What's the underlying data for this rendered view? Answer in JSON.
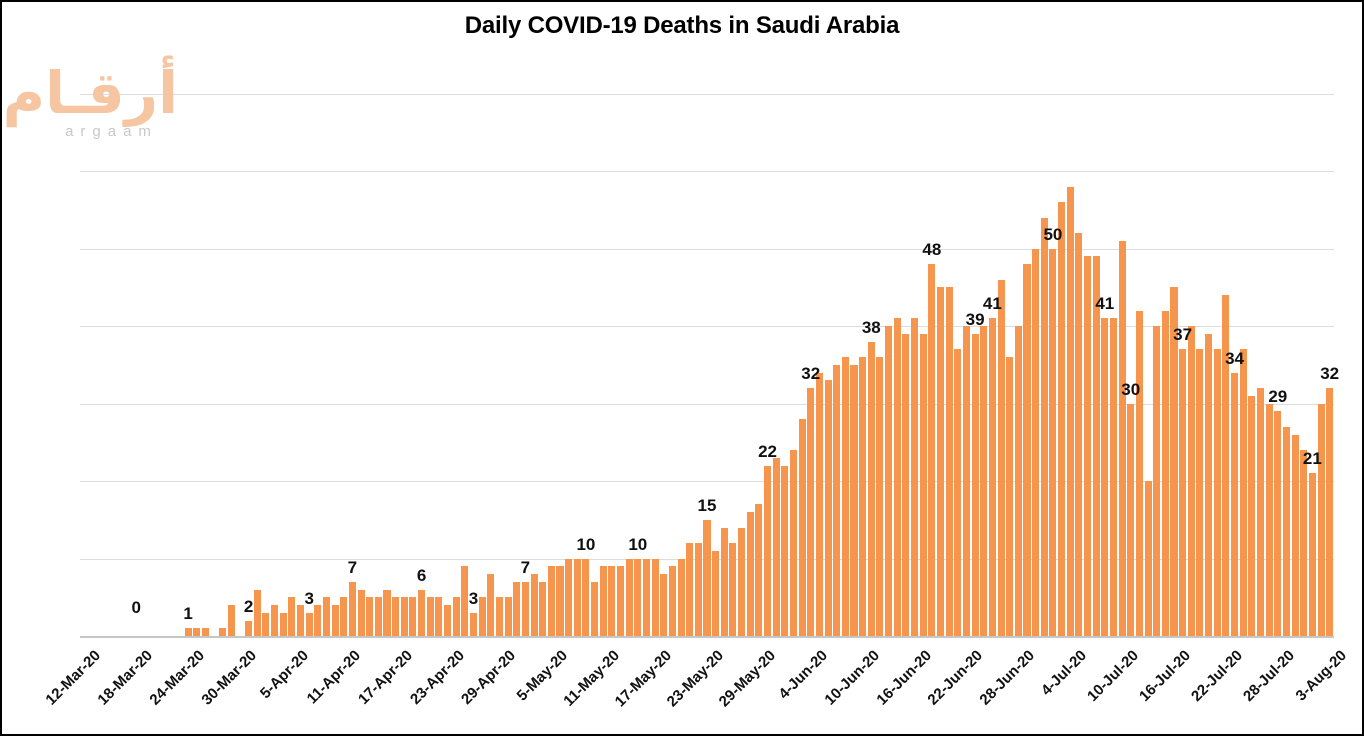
{
  "title": "Daily COVID-19 Deaths in Saudi Arabia",
  "logo": {
    "arabic": "أرقـام",
    "latin": "argaam"
  },
  "colors": {
    "bar": "#F6954D",
    "gridline": "#DCDCDC",
    "axis_line": "#C6C6C6",
    "title_text": "#000000",
    "label_text": "#111111",
    "logo_arabic": "#F6C5A1",
    "logo_latin": "#C8C8C8",
    "background": "#FFFFFF",
    "border": "#000000"
  },
  "chart_data": {
    "type": "bar",
    "title": "Daily COVID-19 Deaths in Saudi Arabia",
    "xlabel": "",
    "ylabel": "",
    "ylim": [
      0,
      70
    ],
    "gridline_step": 10,
    "grid": true,
    "legend": "none",
    "y_axis_labels_visible": false,
    "x_first_date": "12-Mar-20",
    "x_last_date": "3-Aug-20",
    "x_tick_every": 6,
    "x_tick_labels": [
      "12-Mar-20",
      "18-Mar-20",
      "24-Mar-20",
      "30-Mar-20",
      "5-Apr-20",
      "11-Apr-20",
      "17-Apr-20",
      "23-Apr-20",
      "29-Apr-20",
      "5-May-20",
      "11-May-20",
      "17-May-20",
      "23-May-20",
      "29-May-20",
      "4-Jun-20",
      "10-Jun-20",
      "16-Jun-20",
      "22-Jun-20",
      "28-Jun-20",
      "4-Jul-20",
      "10-Jul-20",
      "16-Jul-20",
      "22-Jul-20",
      "28-Jul-20",
      "3-Aug-20"
    ],
    "values": [
      0,
      0,
      0,
      0,
      0,
      0,
      0,
      0,
      0,
      0,
      0,
      0,
      1,
      1,
      1,
      0,
      1,
      4,
      0,
      2,
      6,
      3,
      4,
      3,
      5,
      4,
      3,
      4,
      5,
      4,
      5,
      7,
      6,
      5,
      5,
      6,
      5,
      5,
      5,
      6,
      5,
      5,
      4,
      5,
      9,
      3,
      5,
      8,
      5,
      5,
      7,
      7,
      8,
      7,
      9,
      9,
      10,
      10,
      10,
      7,
      9,
      9,
      9,
      10,
      10,
      10,
      10,
      8,
      9,
      10,
      12,
      12,
      15,
      11,
      14,
      12,
      14,
      16,
      17,
      22,
      23,
      22,
      24,
      28,
      32,
      34,
      33,
      35,
      36,
      35,
      36,
      38,
      36,
      40,
      41,
      39,
      41,
      39,
      48,
      45,
      45,
      37,
      40,
      39,
      40,
      41,
      46,
      36,
      40,
      48,
      50,
      54,
      50,
      56,
      58,
      52,
      49,
      49,
      41,
      41,
      51,
      30,
      42,
      20,
      40,
      42,
      45,
      37,
      40,
      37,
      39,
      37,
      44,
      34,
      37,
      31,
      32,
      30,
      29,
      27,
      26,
      24,
      21,
      30,
      32
    ],
    "data_labels": [
      {
        "index": 6,
        "text": "0"
      },
      {
        "index": 12,
        "text": "1"
      },
      {
        "index": 19,
        "text": "2"
      },
      {
        "index": 26,
        "text": "3"
      },
      {
        "index": 31,
        "text": "7"
      },
      {
        "index": 39,
        "text": "6"
      },
      {
        "index": 45,
        "text": "3"
      },
      {
        "index": 51,
        "text": "7"
      },
      {
        "index": 58,
        "text": "10"
      },
      {
        "index": 64,
        "text": "10"
      },
      {
        "index": 72,
        "text": "15"
      },
      {
        "index": 79,
        "text": "22"
      },
      {
        "index": 84,
        "text": "32"
      },
      {
        "index": 91,
        "text": "38"
      },
      {
        "index": 98,
        "text": "48"
      },
      {
        "index": 103,
        "text": "39"
      },
      {
        "index": 105,
        "text": "41"
      },
      {
        "index": 112,
        "text": "50"
      },
      {
        "index": 118,
        "text": "41"
      },
      {
        "index": 121,
        "text": "30"
      },
      {
        "index": 127,
        "text": "37"
      },
      {
        "index": 133,
        "text": "34"
      },
      {
        "index": 138,
        "text": "29"
      },
      {
        "index": 142,
        "text": "21"
      },
      {
        "index": 144,
        "text": "32"
      }
    ]
  }
}
